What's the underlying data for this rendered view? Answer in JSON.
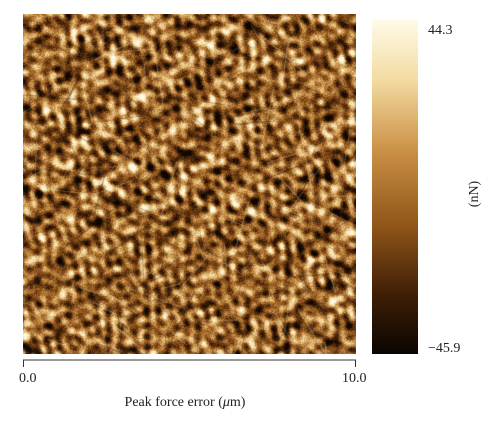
{
  "image": {
    "description_icon": "afm-peak-force-error-map",
    "palette": [
      "#fffbe9",
      "#f3dba0",
      "#c98e43",
      "#8f5418",
      "#3f1f06",
      "#0b0502"
    ]
  },
  "colorbar": {
    "max_label": "44.3",
    "min_label": "−45.9",
    "unit": "(nN)"
  },
  "xaxis": {
    "tick_min": "0.0",
    "tick_max": "10.0",
    "label_prefix": "Peak force error (",
    "label_mu": "μ",
    "label_suffix": "m)"
  }
}
